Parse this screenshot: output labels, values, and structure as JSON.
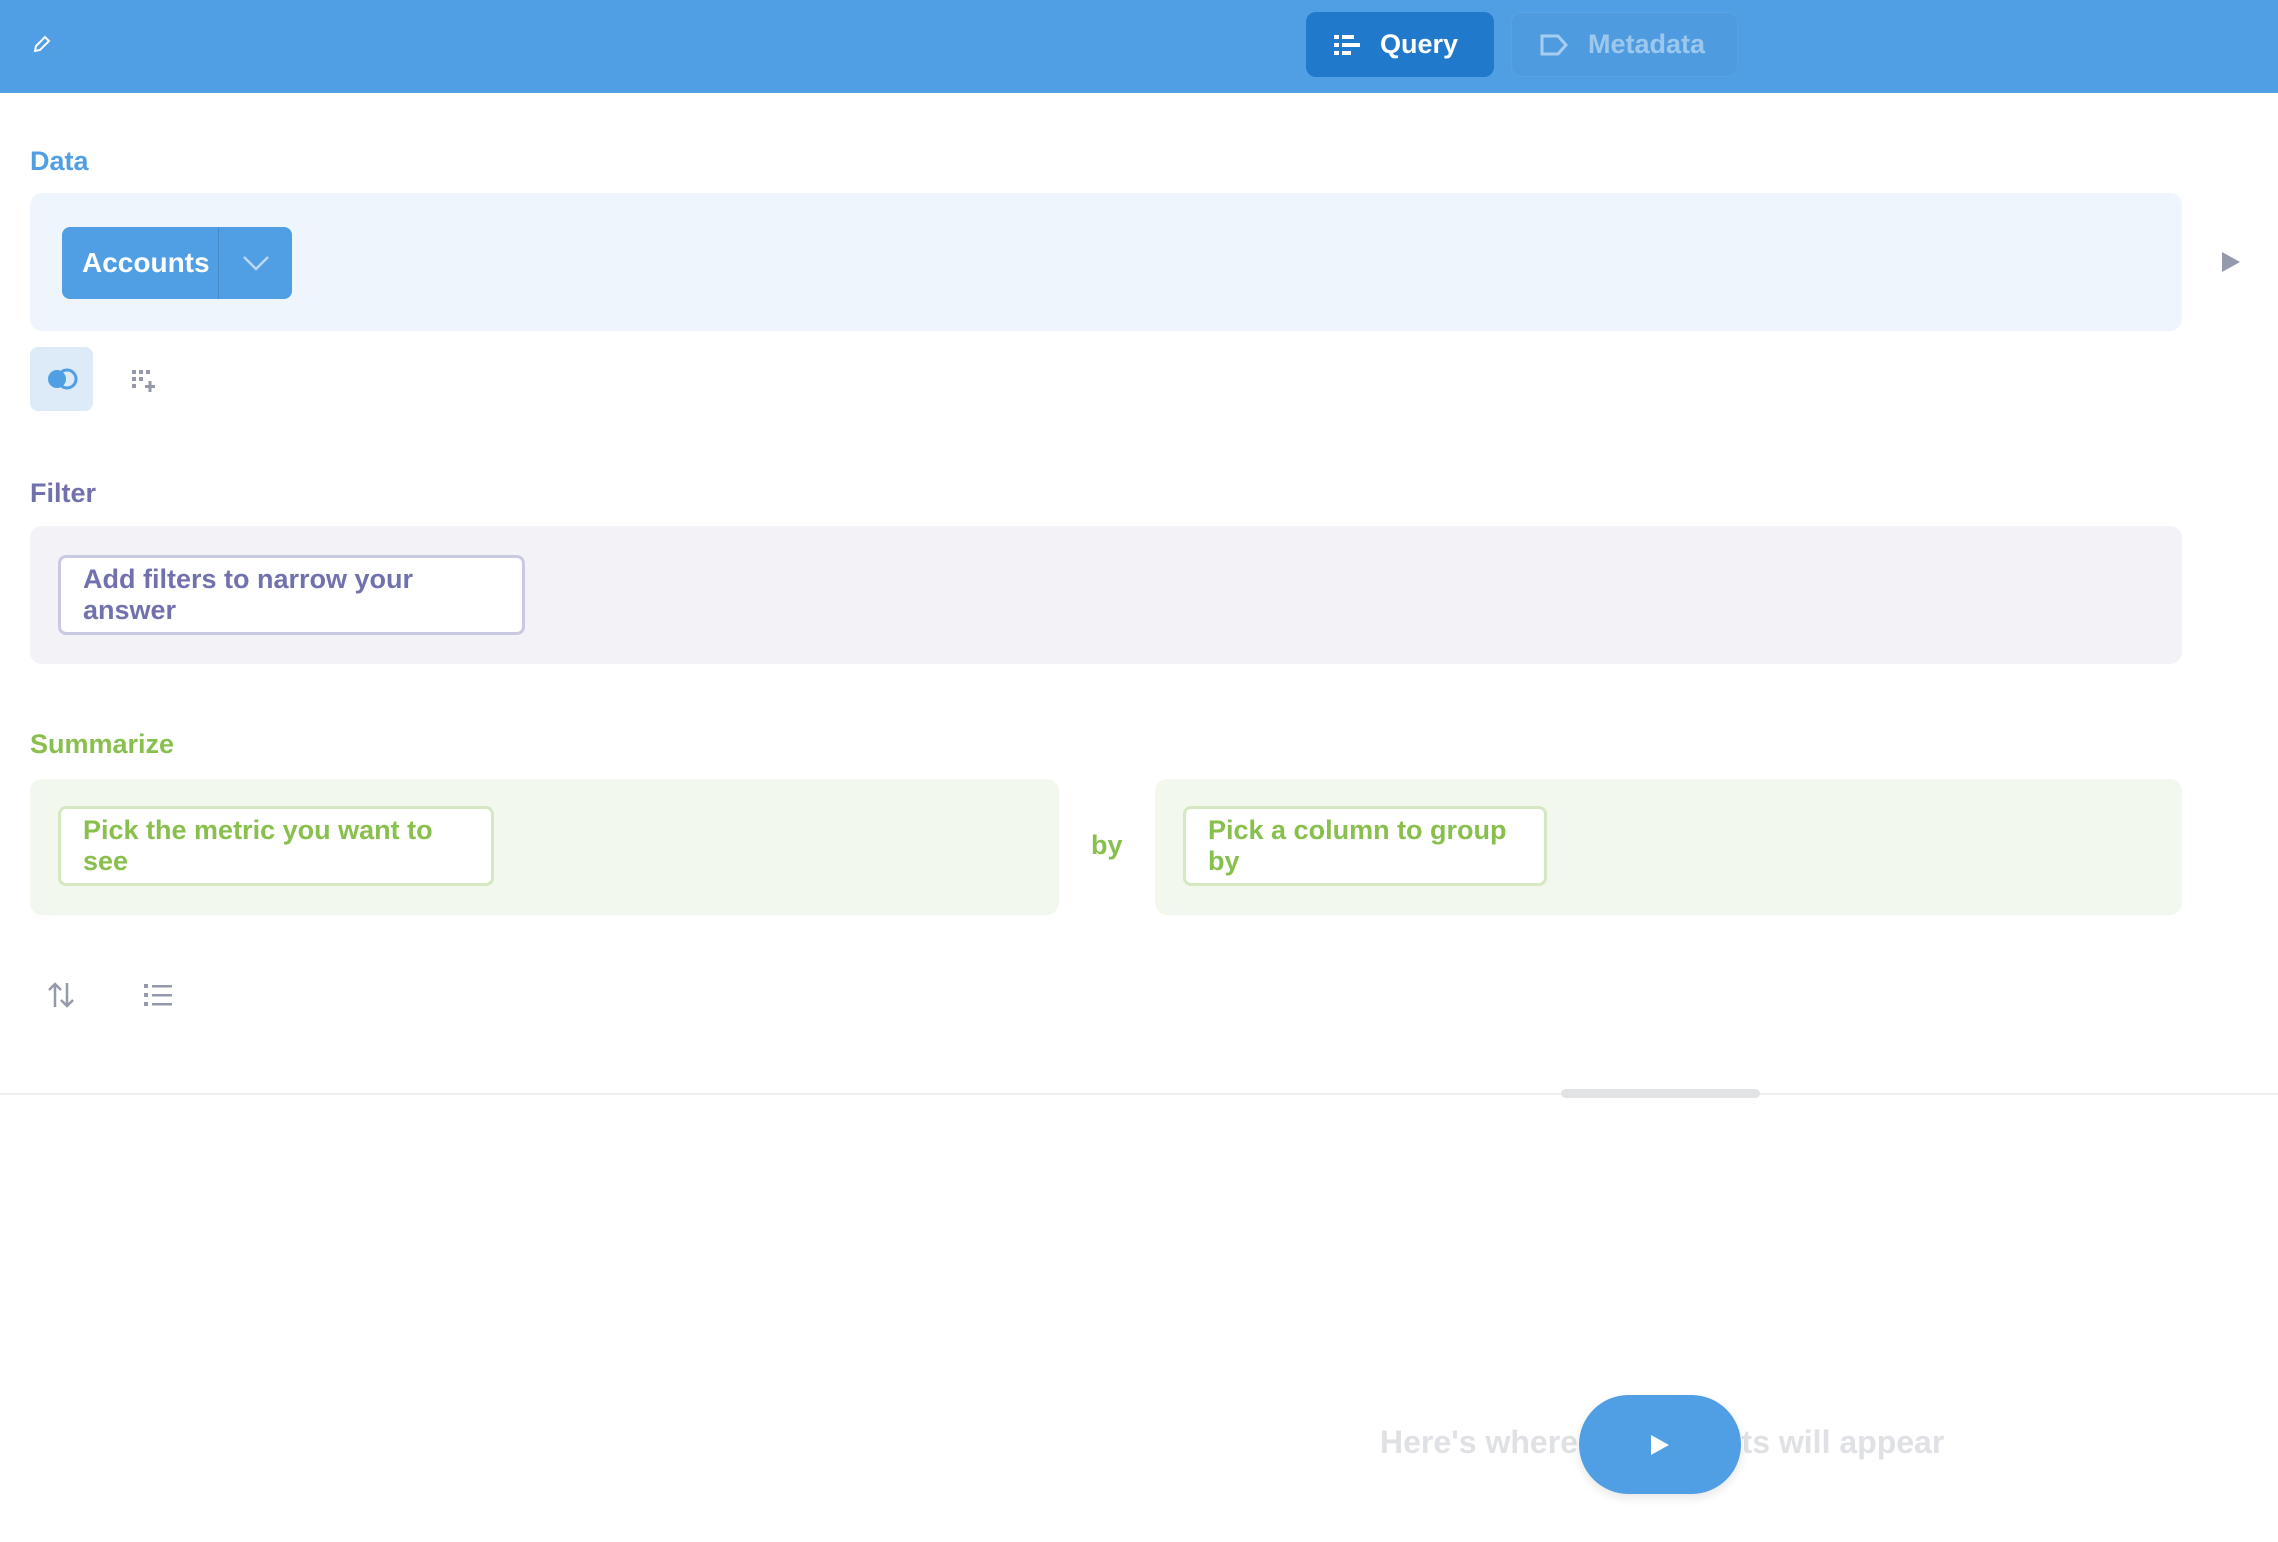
{
  "header": {
    "tabs": [
      {
        "label": "Query",
        "icon": "list-icon",
        "active": true
      },
      {
        "label": "Metadata",
        "icon": "tag-icon",
        "active": false
      }
    ]
  },
  "data": {
    "label": "Data",
    "table": "Accounts"
  },
  "filter": {
    "label": "Filter",
    "placeholder": "Add filters to narrow your answer"
  },
  "summarize": {
    "label": "Summarize",
    "metric_placeholder": "Pick the metric you want to see",
    "by": "by",
    "group_placeholder": "Pick a column to group by"
  },
  "results": {
    "empty_text": "Here's where your results will appear"
  },
  "colors": {
    "brand": "#509EE3",
    "filter": "#7172AD",
    "summarize": "#88BF4D"
  }
}
